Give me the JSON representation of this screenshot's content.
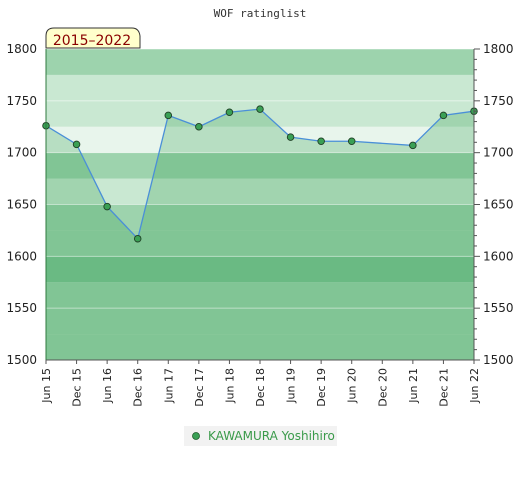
{
  "chart_data": {
    "type": "area",
    "title": "WOF ratinglist",
    "range_label": "2015–2022",
    "categories": [
      "Jun 15",
      "Dec 15",
      "Jun 16",
      "Dec 16",
      "Jun 17",
      "Dec 17",
      "Jun 18",
      "Dec 18",
      "Jun 19",
      "Dec 19",
      "Jun 20",
      "Dec 20",
      "Jun 21",
      "Dec 21",
      "Jun 22"
    ],
    "series": [
      {
        "name": "KAWAMURA Yoshihiro",
        "values": [
          1726,
          1708,
          1648,
          1617,
          1736,
          1725,
          1739,
          1742,
          1715,
          1711,
          1711,
          null,
          1707,
          1736,
          1740
        ]
      }
    ],
    "ylim": [
      1500,
      1800
    ],
    "yticks": [
      1500,
      1550,
      1600,
      1650,
      1700,
      1750,
      1800
    ],
    "xlabel": "",
    "ylabel": "",
    "grid": true,
    "legend_position": "bottom",
    "colors": {
      "line": "#4a8fd8",
      "marker": "#3aa055",
      "band_dark": "#7dc495",
      "band_mid": "#9dd3ad",
      "band_light": "#c9e8d2",
      "band_pale": "#e8f5ec",
      "area_fill": "#3aa055",
      "range_box_fill": "#ffffcc",
      "range_text": "#8a0000",
      "legend_text": "#3a9a4a"
    }
  }
}
